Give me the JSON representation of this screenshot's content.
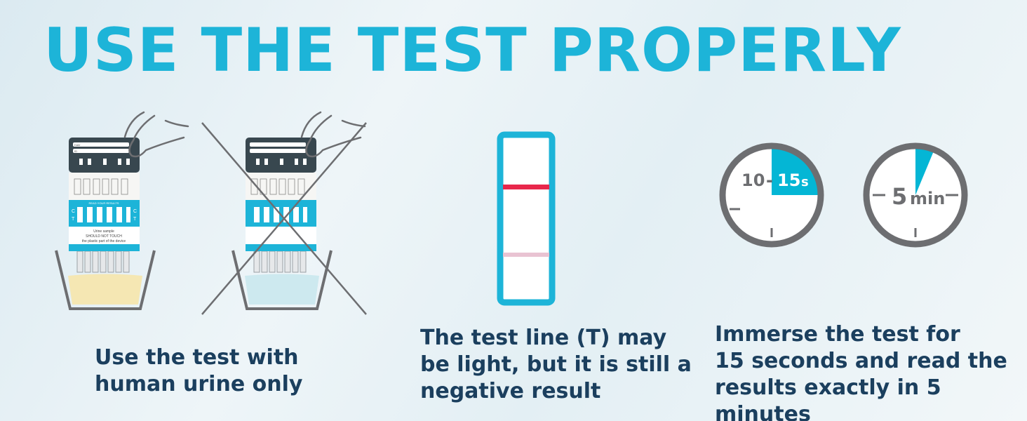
{
  "title": "USE THE TEST PROPERLY",
  "device": {
    "date_label": "Date",
    "id_label": "ID",
    "read_results": "READ YOUR RESULTS",
    "c_label": "C",
    "t_label": "T",
    "warning_line1": "Urine sample",
    "warning_line2": "SHOULD NOT TOUCH",
    "warning_line3": "the plastic part of the device"
  },
  "panels": [
    {
      "caption_lines": [
        "Use the test with",
        "human urine only"
      ]
    },
    {
      "caption_lines": [
        "The test line (T) may",
        "be light, but it is still a",
        "negative result"
      ]
    },
    {
      "caption_lines": [
        "Immerse the test for",
        "15 seconds and read the",
        "results exactly in 5 minutes"
      ]
    }
  ],
  "timers": {
    "immerse_from": "10",
    "immerse_sep": "-",
    "immerse_to": "15",
    "immerse_unit": "s",
    "read_value": "5",
    "read_unit": "min"
  },
  "colors": {
    "accent": "#1db4d8",
    "text": "#1b3f5e",
    "clock_ring": "#6d6e71",
    "control_line": "#e8274b",
    "test_line": "#e9c3d2",
    "urine": "#f5e7b3",
    "water": "#cde9ef"
  }
}
